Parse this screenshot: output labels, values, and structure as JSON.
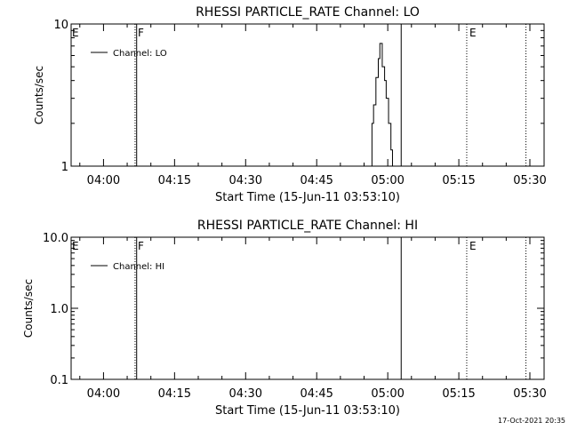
{
  "chart_data": [
    {
      "type": "line",
      "title": "RHESSI PARTICLE_RATE Channel: LO",
      "xlabel": "Start Time (15-Jun-11 03:53:10)",
      "ylabel": "Counts/sec",
      "yscale": "log",
      "ylim": [
        1,
        10
      ],
      "ytick_values": [
        1,
        10
      ],
      "ytick_labels": [
        "1",
        "10"
      ],
      "xlim": [
        "03:53:10",
        "05:33:00"
      ],
      "xtick_labels": [
        "04:00",
        "04:15",
        "04:30",
        "04:45",
        "05:00",
        "05:15",
        "05:30"
      ],
      "legend": "Channel: LO",
      "legend_position": "top-left",
      "grid": false,
      "markers": [
        {
          "time": "04:06:40",
          "label": "F",
          "style": "dotted"
        },
        {
          "time": "04:07:00",
          "label": "",
          "style": "solid"
        },
        {
          "time": "05:02:50",
          "label": "",
          "style": "solid"
        },
        {
          "time": "05:16:40",
          "label": "E",
          "style": "dotted"
        },
        {
          "time": "05:29:10",
          "label": "",
          "style": "dotted"
        }
      ],
      "edge_label": "E",
      "series": [
        {
          "name": "Channel: LO",
          "x": [
            "04:56:00",
            "04:56:40",
            "04:57:00",
            "04:57:30",
            "04:58:00",
            "04:58:20",
            "04:58:50",
            "04:59:20",
            "04:59:40",
            "05:00:10",
            "05:00:40",
            "05:01:00"
          ],
          "y": [
            1.0,
            2.0,
            2.7,
            4.2,
            5.7,
            7.3,
            5.0,
            4.0,
            3.0,
            2.0,
            1.3,
            1.0
          ]
        }
      ]
    },
    {
      "type": "line",
      "title": "RHESSI PARTICLE_RATE Channel: HI",
      "xlabel": "Start Time (15-Jun-11 03:53:10)",
      "ylabel": "Counts/sec",
      "yscale": "log",
      "ylim": [
        0.1,
        10
      ],
      "ytick_values": [
        0.1,
        1,
        10
      ],
      "ytick_labels": [
        "0.1",
        "1.0",
        "10.0"
      ],
      "xlim": [
        "03:53:10",
        "05:33:00"
      ],
      "xtick_labels": [
        "04:00",
        "04:15",
        "04:30",
        "04:45",
        "05:00",
        "05:15",
        "05:30"
      ],
      "legend": "Channel: HI",
      "legend_position": "top-left",
      "grid": false,
      "markers": [
        {
          "time": "04:06:40",
          "label": "F",
          "style": "dotted"
        },
        {
          "time": "04:07:00",
          "label": "",
          "style": "solid"
        },
        {
          "time": "05:02:50",
          "label": "",
          "style": "solid"
        },
        {
          "time": "05:16:40",
          "label": "E",
          "style": "dotted"
        },
        {
          "time": "05:29:10",
          "label": "",
          "style": "dotted"
        }
      ],
      "edge_label": "E",
      "series": [
        {
          "name": "Channel: HI",
          "x": [],
          "y": []
        }
      ]
    }
  ],
  "timestamp": "17-Oct-2021 20:35"
}
